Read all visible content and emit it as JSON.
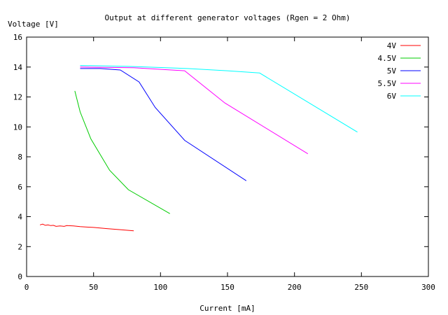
{
  "chart_data": {
    "type": "line",
    "title": "Output at different generator voltages (Rgen = 2 Ohm)",
    "xlabel": "Current [mA]",
    "ylabel": "Voltage [V]",
    "xlim": [
      0,
      300
    ],
    "ylim": [
      0,
      16
    ],
    "xticks": [
      0,
      50,
      100,
      150,
      200,
      250,
      300
    ],
    "yticks": [
      0,
      2,
      4,
      6,
      8,
      10,
      12,
      14,
      16
    ],
    "grid": false,
    "legend_position": "top-right",
    "series": [
      {
        "name": "4V",
        "color": "#ff0000",
        "points": [
          [
            10,
            3.45
          ],
          [
            12,
            3.5
          ],
          [
            14,
            3.42
          ],
          [
            16,
            3.45
          ],
          [
            18,
            3.4
          ],
          [
            20,
            3.42
          ],
          [
            22,
            3.35
          ],
          [
            25,
            3.38
          ],
          [
            28,
            3.35
          ],
          [
            30,
            3.4
          ],
          [
            35,
            3.38
          ],
          [
            40,
            3.33
          ],
          [
            50,
            3.28
          ],
          [
            60,
            3.2
          ],
          [
            70,
            3.13
          ],
          [
            80,
            3.05
          ]
        ]
      },
      {
        "name": "4.5V",
        "color": "#00cc00",
        "points": [
          [
            36,
            12.4
          ],
          [
            40,
            11.0
          ],
          [
            48,
            9.2
          ],
          [
            62,
            7.1
          ],
          [
            76,
            5.8
          ],
          [
            107,
            4.2
          ]
        ]
      },
      {
        "name": "5V",
        "color": "#0000ff",
        "points": [
          [
            40,
            13.9
          ],
          [
            55,
            13.9
          ],
          [
            70,
            13.8
          ],
          [
            84,
            13.0
          ],
          [
            96,
            11.3
          ],
          [
            118,
            9.1
          ],
          [
            164,
            6.4
          ]
        ]
      },
      {
        "name": "5.5V",
        "color": "#ff00ff",
        "points": [
          [
            40,
            14.0
          ],
          [
            80,
            13.95
          ],
          [
            118,
            13.75
          ],
          [
            148,
            11.6
          ],
          [
            210,
            8.2
          ]
        ]
      },
      {
        "name": "6V",
        "color": "#00ffff",
        "points": [
          [
            40,
            14.1
          ],
          [
            75,
            14.05
          ],
          [
            120,
            13.9
          ],
          [
            150,
            13.75
          ],
          [
            174,
            13.6
          ],
          [
            247,
            9.65
          ]
        ]
      }
    ]
  }
}
